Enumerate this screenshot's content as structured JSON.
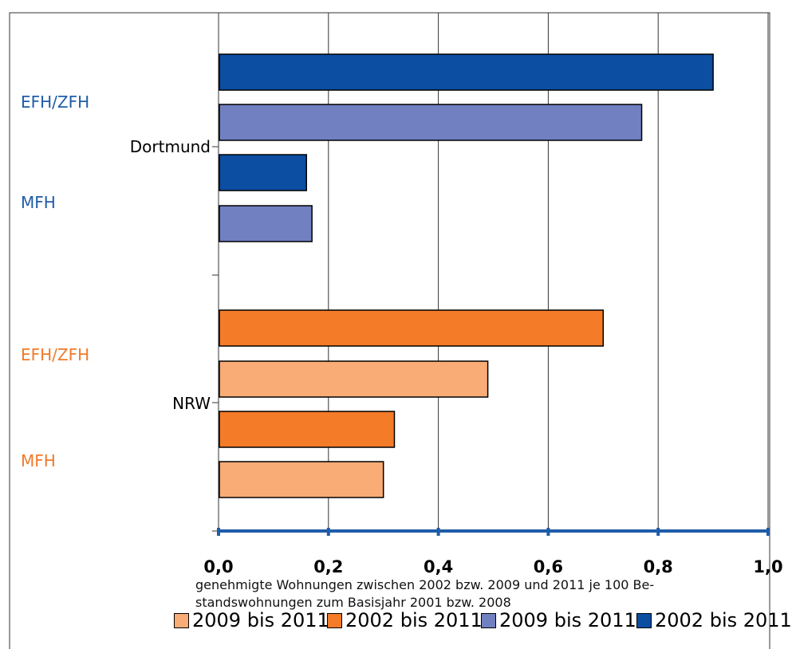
{
  "chart_data": {
    "type": "bar",
    "orientation": "horizontal",
    "xlim": [
      0,
      1.0
    ],
    "x_ticks": [
      "0,0",
      "0,2",
      "0,4",
      "0,6",
      "0,8",
      "1,0"
    ],
    "xlabel": [
      "genehmigte Wohnungen zwischen 2002 bzw. 2009 und 2011 je 100 Be-",
      "standswohnungen zum Basisjahr 2001 bzw. 2008"
    ],
    "grid": true,
    "legend_placement": "bottom",
    "groups": [
      {
        "name": "Dortmund",
        "subgroups": [
          {
            "label": "EFH/ZFH",
            "color": "#1f5ca8",
            "bars": [
              {
                "series": "2002 bis 2011",
                "value": 0.9,
                "color": "#0b4ea2"
              },
              {
                "series": "2009 bis 2011",
                "value": 0.77,
                "color": "#7180c0"
              }
            ]
          },
          {
            "label": "MFH",
            "color": "#1f5ca8",
            "bars": [
              {
                "series": "2002 bis 2011",
                "value": 0.16,
                "color": "#0b4ea2"
              },
              {
                "series": "2009 bis 2011",
                "value": 0.17,
                "color": "#7180c0"
              }
            ]
          }
        ]
      },
      {
        "name": "NRW",
        "subgroups": [
          {
            "label": "EFH/ZFH",
            "color": "#f07a2a",
            "bars": [
              {
                "series": "2002 bis 2011",
                "value": 0.7,
                "color": "#f47b28"
              },
              {
                "series": "2009 bis 2011",
                "value": 0.49,
                "color": "#f9ac76"
              }
            ]
          },
          {
            "label": "MFH",
            "color": "#f07a2a",
            "bars": [
              {
                "series": "2002 bis 2011",
                "value": 0.32,
                "color": "#f47b28"
              },
              {
                "series": "2009 bis 2011",
                "value": 0.3,
                "color": "#f9ac76"
              }
            ]
          }
        ]
      }
    ],
    "legend": [
      {
        "label": "2009 bis 2011",
        "color": "#f9ac76"
      },
      {
        "label": "2002 bis 2011",
        "color": "#f47b28"
      },
      {
        "label": "2009 bis 2011",
        "color": "#7180c0"
      },
      {
        "label": "2002 bis 2011",
        "color": "#0b4ea2"
      }
    ]
  }
}
